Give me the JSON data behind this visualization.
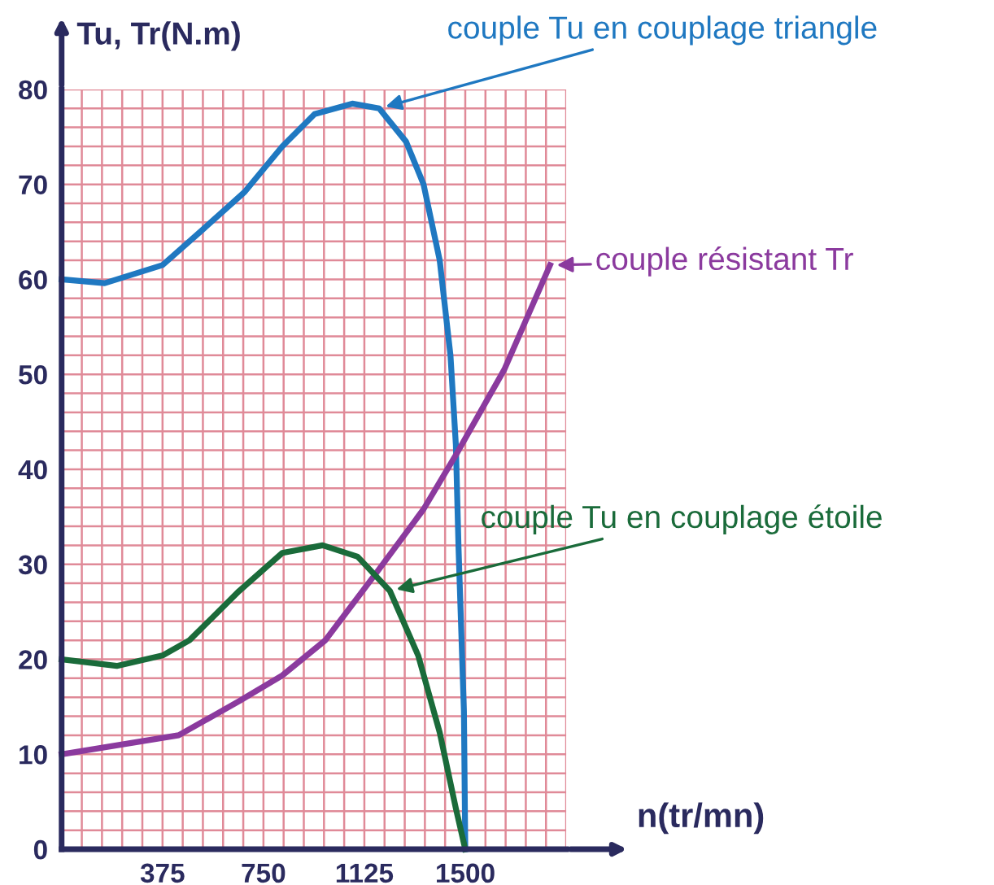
{
  "chart_data": {
    "type": "line",
    "xlabel": "n(tr/mn)",
    "ylabel": "Tu, Tr(N.m)",
    "xlim": [
      0,
      1875
    ],
    "ylim": [
      0,
      80
    ],
    "xticks": [
      375,
      750,
      1125,
      1500
    ],
    "yticks": [
      0,
      10,
      20,
      30,
      40,
      50,
      60,
      70,
      80
    ],
    "grid": true,
    "marker": "none",
    "line_style": "solid",
    "series": [
      {
        "name": "couple Tu en couplage triangle",
        "color": "#1f78c1",
        "x": [
          0,
          160,
          375,
          515,
          680,
          820,
          940,
          1080,
          1180,
          1280,
          1345,
          1405,
          1445,
          1465,
          1475,
          1495,
          1500
        ],
        "values": [
          60,
          59.6,
          61.5,
          65,
          69.2,
          74,
          77.4,
          78.5,
          78,
          74.5,
          70,
          62,
          52,
          42.6,
          31.7,
          14.5,
          0
        ]
      },
      {
        "name": "couple résistant Tr",
        "color": "#8b3a9e",
        "x": [
          0,
          435,
          660,
          820,
          980,
          1180,
          1345,
          1465,
          1645,
          1815
        ],
        "values": [
          10,
          12,
          15.6,
          18.3,
          22,
          29.5,
          35.8,
          41.5,
          50.5,
          61.5
        ]
      },
      {
        "name": "couple Tu en couplage étoile",
        "color": "#1a6b3a",
        "x": [
          0,
          205,
          375,
          475,
          660,
          820,
          970,
          1100,
          1220,
          1325,
          1405,
          1465,
          1500
        ],
        "values": [
          20,
          19.3,
          20.4,
          22,
          27.2,
          31.2,
          32,
          30.8,
          27.2,
          20.4,
          12.3,
          4.3,
          0
        ]
      }
    ]
  }
}
